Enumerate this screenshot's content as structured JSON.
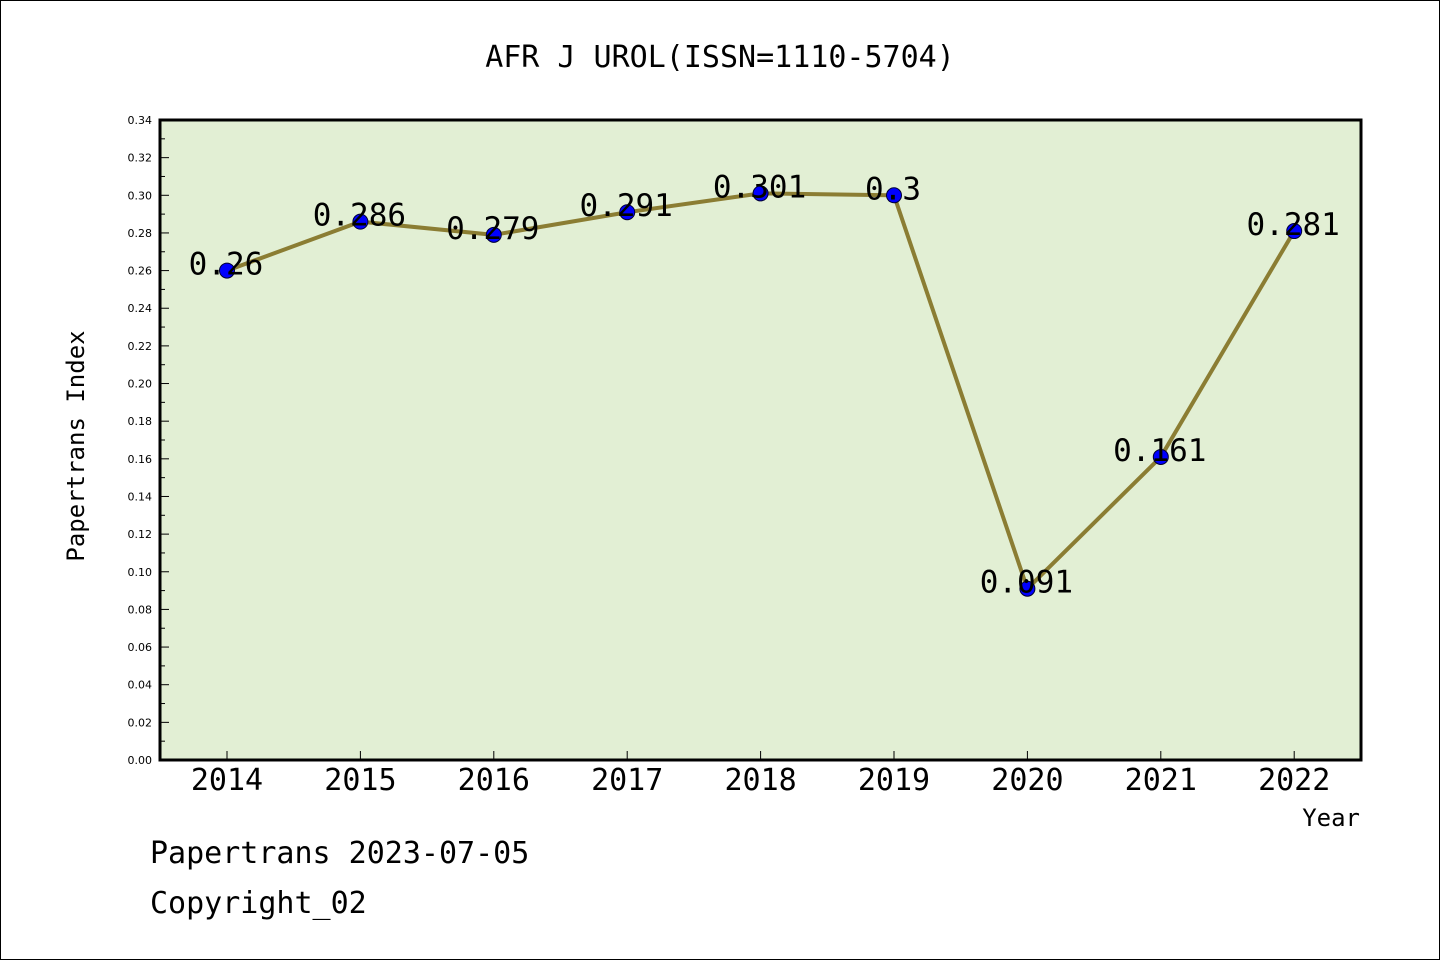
{
  "chart_data": {
    "type": "line",
    "title": "AFR J UROL(ISSN=1110-5704)",
    "xlabel": "Year",
    "ylabel": "Papertrans Index",
    "categories": [
      "2014",
      "2015",
      "2016",
      "2017",
      "2018",
      "2019",
      "2020",
      "2021",
      "2022"
    ],
    "series": [
      {
        "values": [
          0.26,
          0.286,
          0.279,
          0.291,
          0.301,
          0.3,
          0.091,
          0.161,
          0.281
        ]
      }
    ],
    "data_labels": [
      "0.26",
      "0.286",
      "0.279",
      "0.291",
      "0.301",
      "0.3",
      "0.091",
      "0.161",
      "0.281"
    ],
    "ylim": [
      0,
      0.34
    ],
    "yticks": [
      "0.00",
      "0.02",
      "0.04",
      "0.06",
      "0.08",
      "0.10",
      "0.12",
      "0.14",
      "0.16",
      "0.18",
      "0.20",
      "0.22",
      "0.24",
      "0.26",
      "0.28",
      "0.30",
      "0.32",
      "0.34"
    ],
    "grid": false,
    "colors": {
      "plot_background": "#e2efd4",
      "line": "#8b7d33",
      "marker": "#0000ff"
    }
  },
  "footer": {
    "line1": "Papertrans 2023-07-05",
    "line2": "Copyright_02"
  }
}
